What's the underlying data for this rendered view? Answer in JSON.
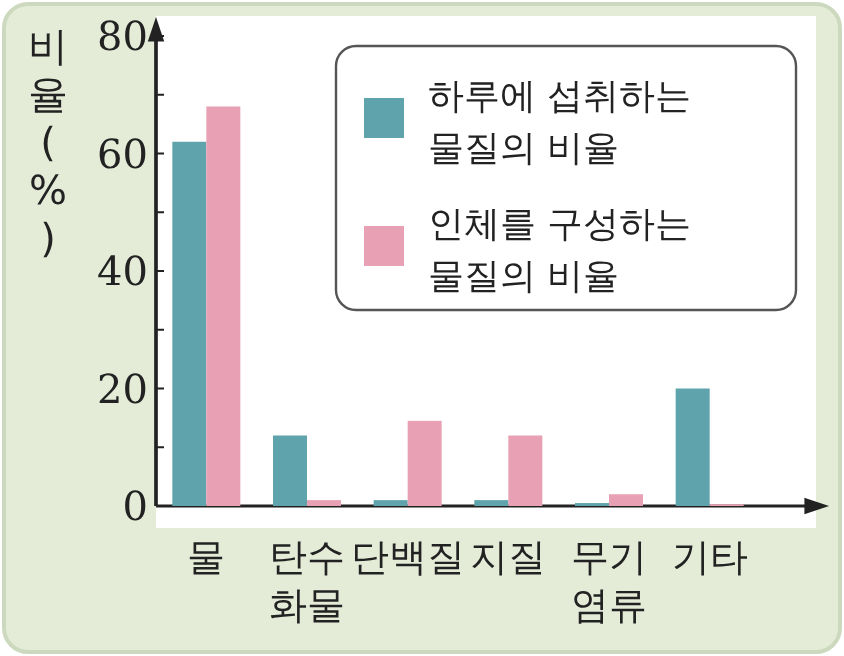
{
  "chart_data": {
    "type": "bar",
    "ylabel": "비율(%)",
    "categories": [
      "물",
      "탄수화물",
      "단백질",
      "지질",
      "무기염류",
      "기타"
    ],
    "series": [
      {
        "name": "하루에 섭취하는 물질의 비율",
        "color": "#5fa3ad",
        "values": [
          62,
          12,
          1,
          1,
          0.5,
          20
        ]
      },
      {
        "name": "인체를 구성하는 물질의 비율",
        "color": "#e8a0b4",
        "values": [
          68,
          1,
          14.5,
          12,
          2,
          0.3
        ]
      }
    ],
    "ylim": [
      0,
      80
    ],
    "yticks": [
      0,
      {
        "value": 10,
        "label": null
      },
      20,
      {
        "value": 30,
        "label": null
      },
      40,
      {
        "value": 50,
        "label": null
      },
      60,
      {
        "value": 70,
        "label": null
      },
      80
    ],
    "legend": "top right",
    "grid": false
  }
}
